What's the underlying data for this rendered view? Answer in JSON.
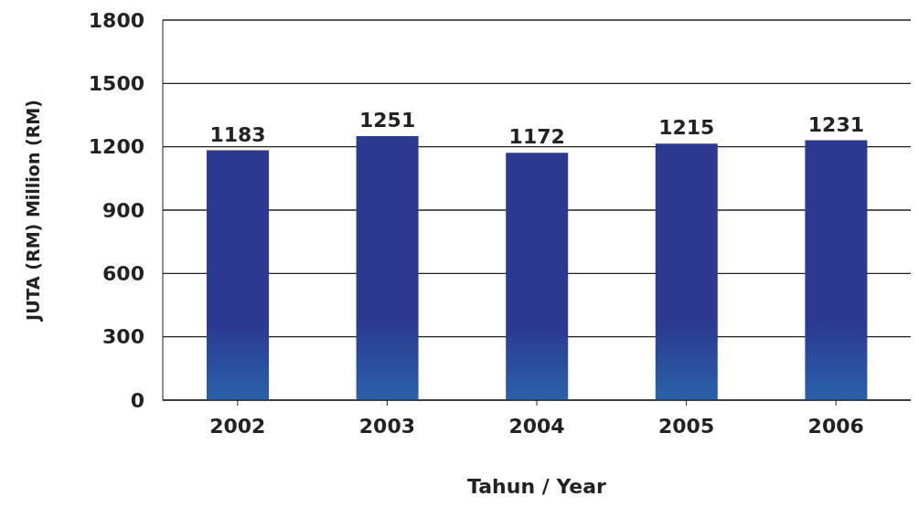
{
  "chart_data": {
    "type": "bar",
    "xlabel": "Tahun / Year",
    "ylabel": "JUTA (RM) Million (RM)",
    "categories": [
      "2002",
      "2003",
      "2004",
      "2005",
      "2006"
    ],
    "values": [
      1183,
      1251,
      1172,
      1215,
      1231
    ],
    "color": "#2b3990",
    "ylim": [
      0,
      1800
    ],
    "yticks": [
      0,
      300,
      600,
      900,
      1200,
      1500,
      1800
    ],
    "grid": "y",
    "data_labels": true
  }
}
